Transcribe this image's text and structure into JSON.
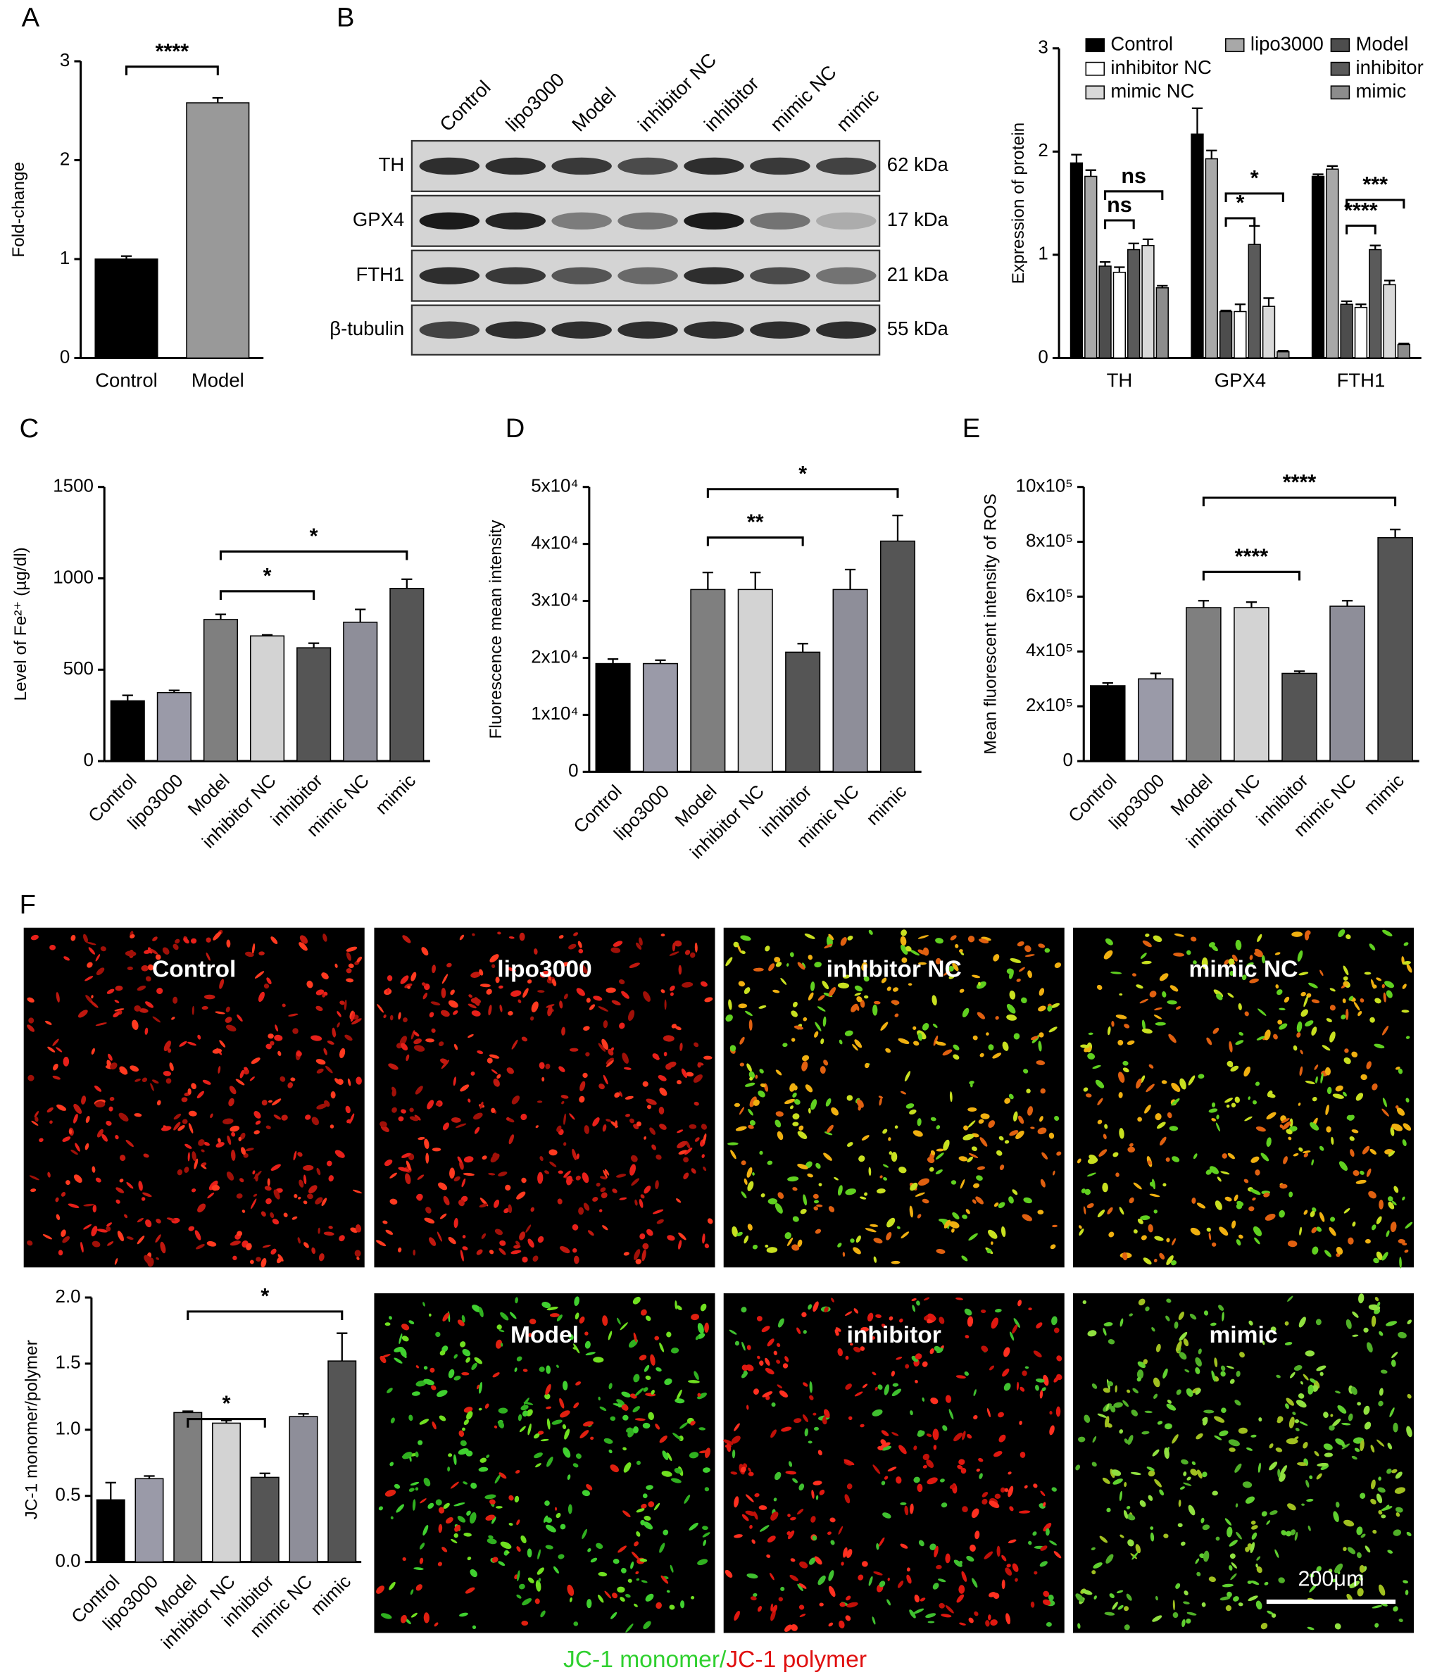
{
  "panel_labels": [
    "A",
    "B",
    "C",
    "D",
    "E",
    "F"
  ],
  "chart_data": [
    {
      "type": "bar",
      "y_label": "Fold-change",
      "categories": [
        "Control",
        "Model"
      ],
      "values": [
        1.0,
        2.58
      ],
      "errors": [
        0.03,
        0.05
      ],
      "colors": [
        "#000000",
        "#999999"
      ],
      "ylim": [
        0,
        3
      ],
      "yticks": [
        0,
        1,
        2,
        3
      ],
      "annotations": [
        "****"
      ]
    },
    {
      "type": "grouped-bar",
      "y_label": "Expression of protein",
      "categories": [
        "TH",
        "GPX4",
        "FTH1"
      ],
      "legend": "top",
      "series": [
        {
          "name": "Control",
          "color": "#000000",
          "values": [
            1.89,
            2.17,
            1.76
          ],
          "errors": [
            0.08,
            0.25,
            0.02
          ]
        },
        {
          "name": "lipo3000",
          "color": "#a8a8a8",
          "values": [
            1.76,
            1.93,
            1.83
          ],
          "errors": [
            0.06,
            0.08,
            0.03
          ]
        },
        {
          "name": "Model",
          "color": "#4d4d4d",
          "values": [
            0.89,
            0.45,
            0.52
          ],
          "errors": [
            0.04,
            0.01,
            0.03
          ]
        },
        {
          "name": "inhibitor NC",
          "color": "#ffffff",
          "values": [
            0.83,
            0.45,
            0.49
          ],
          "errors": [
            0.05,
            0.07,
            0.03
          ]
        },
        {
          "name": "inhibitor",
          "color": "#5a5a5a",
          "values": [
            1.05,
            1.1,
            1.05
          ],
          "errors": [
            0.06,
            0.18,
            0.04
          ]
        },
        {
          "name": "mimic NC",
          "color": "#d9d9d9",
          "values": [
            1.09,
            0.5,
            0.71
          ],
          "errors": [
            0.06,
            0.08,
            0.04
          ]
        },
        {
          "name": "mimic",
          "color": "#8c8c8c",
          "values": [
            0.68,
            0.06,
            0.13
          ],
          "errors": [
            0.02,
            0.01,
            0.01
          ]
        }
      ],
      "ylim": [
        0,
        3
      ],
      "yticks": [
        0,
        1,
        2,
        3
      ],
      "annotations": [
        "ns",
        "ns",
        "*",
        "*",
        "****",
        "***"
      ]
    },
    {
      "type": "bar",
      "y_label": "Level of Fe²⁺ (µg/dl)",
      "categories": [
        "Control",
        "lipo3000",
        "Model",
        "inhibitor NC",
        "inhibitor",
        "mimic NC",
        "mimic"
      ],
      "values": [
        330,
        375,
        775,
        685,
        620,
        760,
        945
      ],
      "errors": [
        30,
        12,
        28,
        5,
        25,
        70,
        50
      ],
      "colors": [
        "#000000",
        "#9a9aa8",
        "#7f7f7f",
        "#d3d3d3",
        "#555555",
        "#8e8e99",
        "#555555"
      ],
      "ylim": [
        0,
        1500
      ],
      "yticks": [
        0,
        500,
        1000,
        1500
      ],
      "annotations": [
        "*",
        "*"
      ]
    },
    {
      "type": "bar",
      "y_label": "Fluorescence mean intensity",
      "categories": [
        "Control",
        "lipo3000",
        "Model",
        "inhibitor NC",
        "inhibitor",
        "mimic NC",
        "mimic"
      ],
      "values": [
        19000,
        19000,
        32000,
        32000,
        21000,
        32000,
        40500
      ],
      "errors": [
        800,
        600,
        3000,
        3000,
        1500,
        3500,
        4500
      ],
      "colors": [
        "#000000",
        "#9a9aa8",
        "#7f7f7f",
        "#d3d3d3",
        "#555555",
        "#8e8e99",
        "#555555"
      ],
      "ylim": [
        0,
        50000
      ],
      "yticks": [
        0,
        {
          "value": 10000,
          "label": "1x10⁴"
        },
        {
          "value": 20000,
          "label": "2x10⁴"
        },
        {
          "value": 30000,
          "label": "3x10⁴"
        },
        {
          "value": 40000,
          "label": "4x10⁴"
        },
        {
          "value": 50000,
          "label": "5x10⁴"
        }
      ],
      "annotations": [
        "**",
        "*"
      ]
    },
    {
      "type": "bar",
      "y_label": "Mean fluorescent intensity of ROS",
      "categories": [
        "Control",
        "lipo3000",
        "Model",
        "inhibitor NC",
        "inhibitor",
        "mimic NC",
        "mimic"
      ],
      "values": [
        275000,
        300000,
        560000,
        560000,
        320000,
        565000,
        815000
      ],
      "errors": [
        10000,
        20000,
        25000,
        20000,
        8000,
        20000,
        30000
      ],
      "colors": [
        "#000000",
        "#9a9aa8",
        "#7f7f7f",
        "#d3d3d3",
        "#555555",
        "#8e8e99",
        "#555555"
      ],
      "ylim": [
        0,
        1000000
      ],
      "yticks": [
        0,
        {
          "value": 200000,
          "label": "2x10⁵"
        },
        {
          "value": 400000,
          "label": "4x10⁵"
        },
        {
          "value": 600000,
          "label": "6x10⁵"
        },
        {
          "value": 800000,
          "label": "8x10⁵"
        },
        {
          "value": 1000000,
          "label": "10x10⁵"
        }
      ],
      "annotations": [
        "****",
        "****"
      ]
    },
    {
      "type": "bar",
      "y_label": "JC-1 monomer/polymer",
      "categories": [
        "Control",
        "lipo3000",
        "Model",
        "inhibitor NC",
        "inhibitor",
        "mimic NC",
        "mimic"
      ],
      "values": [
        0.47,
        0.63,
        1.13,
        1.05,
        0.64,
        1.1,
        1.52
      ],
      "errors": [
        0.13,
        0.02,
        0.01,
        0.02,
        0.03,
        0.02,
        0.21
      ],
      "colors": [
        "#000000",
        "#9a9aa8",
        "#7f7f7f",
        "#d3d3d3",
        "#555555",
        "#8e8e99",
        "#555555"
      ],
      "ylim": [
        0,
        2
      ],
      "yticks": [
        {
          "value": 0,
          "label": "0.0"
        },
        {
          "value": 0.5,
          "label": "0.5"
        },
        {
          "value": 1,
          "label": "1.0"
        },
        {
          "value": 1.5,
          "label": "1.5"
        },
        {
          "value": 2,
          "label": "2.0"
        }
      ],
      "annotations": [
        "*",
        "*"
      ]
    }
  ],
  "western_blot": {
    "lanes": [
      "Control",
      "lipo3000",
      "Model",
      "inhibitor NC",
      "inhibitor",
      "mimic NC",
      "mimic"
    ],
    "bands": [
      {
        "protein": "TH",
        "size": "62 kDa"
      },
      {
        "protein": "GPX4",
        "size": "17 kDa"
      },
      {
        "protein": "FTH1",
        "size": "21 kDa"
      },
      {
        "protein": "β-tubulin",
        "size": "55 kDa"
      }
    ]
  },
  "micrographs": {
    "panels": [
      "Control",
      "lipo3000",
      "inhibitor NC",
      "mimic NC",
      "Model",
      "inhibitor",
      "mimic"
    ],
    "scale_bar": "200μm",
    "caption": [
      "JC-1 monomer/",
      "JC-1 polymer"
    ]
  }
}
